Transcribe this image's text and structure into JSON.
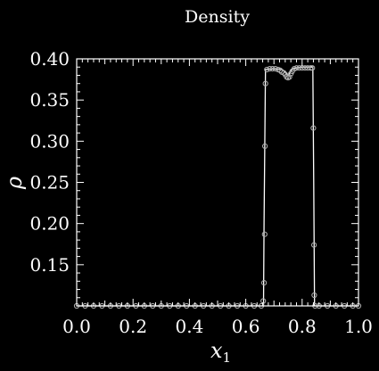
{
  "chart_data": {
    "type": "line",
    "title": "Density",
    "xlabel": "x",
    "xlabel_sub": "1",
    "ylabel": "ρ",
    "xlim": [
      0.0,
      1.0
    ],
    "ylim": [
      0.1,
      0.4
    ],
    "xticks": [
      "0.0",
      "0.2",
      "0.4",
      "0.6",
      "0.8",
      "1.0"
    ],
    "yticks": [
      "0.15",
      "0.20",
      "0.25",
      "0.30",
      "0.35",
      "0.40"
    ],
    "grid": false,
    "background": "#000000",
    "foreground": "#ffffff",
    "marker_color": "#b0b0b0",
    "series": [
      {
        "style": "line",
        "x": [
          0.0,
          0.663,
          0.665,
          0.67,
          0.7,
          0.73,
          0.745,
          0.75,
          0.755,
          0.765,
          0.78,
          0.8,
          0.838,
          0.841,
          0.844,
          1.0
        ],
        "y": [
          0.1,
          0.1,
          0.2,
          0.387,
          0.388,
          0.387,
          0.382,
          0.38,
          0.382,
          0.388,
          0.389,
          0.39,
          0.39,
          0.25,
          0.1,
          0.1
        ]
      },
      {
        "style": "markers",
        "x": [
          0.0,
          0.03,
          0.06,
          0.09,
          0.12,
          0.15,
          0.18,
          0.21,
          0.24,
          0.27,
          0.3,
          0.33,
          0.36,
          0.39,
          0.42,
          0.45,
          0.48,
          0.51,
          0.54,
          0.57,
          0.6,
          0.63,
          0.655,
          0.662,
          0.665,
          0.667,
          0.668,
          0.67,
          0.675,
          0.685,
          0.695,
          0.705,
          0.715,
          0.722,
          0.728,
          0.735,
          0.74,
          0.745,
          0.75,
          0.755,
          0.76,
          0.765,
          0.772,
          0.78,
          0.79,
          0.8,
          0.81,
          0.82,
          0.83,
          0.836,
          0.84,
          0.842,
          0.843,
          0.846,
          0.86,
          0.89,
          0.92,
          0.95,
          0.98,
          1.0
        ],
        "y": [
          0.1,
          0.1,
          0.1,
          0.1,
          0.1,
          0.1,
          0.1,
          0.1,
          0.1,
          0.1,
          0.1,
          0.1,
          0.1,
          0.1,
          0.1,
          0.1,
          0.1,
          0.1,
          0.1,
          0.1,
          0.1,
          0.1,
          0.1,
          0.106,
          0.128,
          0.187,
          0.294,
          0.37,
          0.387,
          0.388,
          0.388,
          0.388,
          0.387,
          0.386,
          0.384,
          0.383,
          0.381,
          0.378,
          0.377,
          0.378,
          0.382,
          0.385,
          0.388,
          0.389,
          0.389,
          0.389,
          0.389,
          0.389,
          0.389,
          0.389,
          0.316,
          0.174,
          0.113,
          0.1,
          0.1,
          0.1,
          0.1,
          0.1,
          0.1,
          0.1
        ]
      }
    ]
  }
}
